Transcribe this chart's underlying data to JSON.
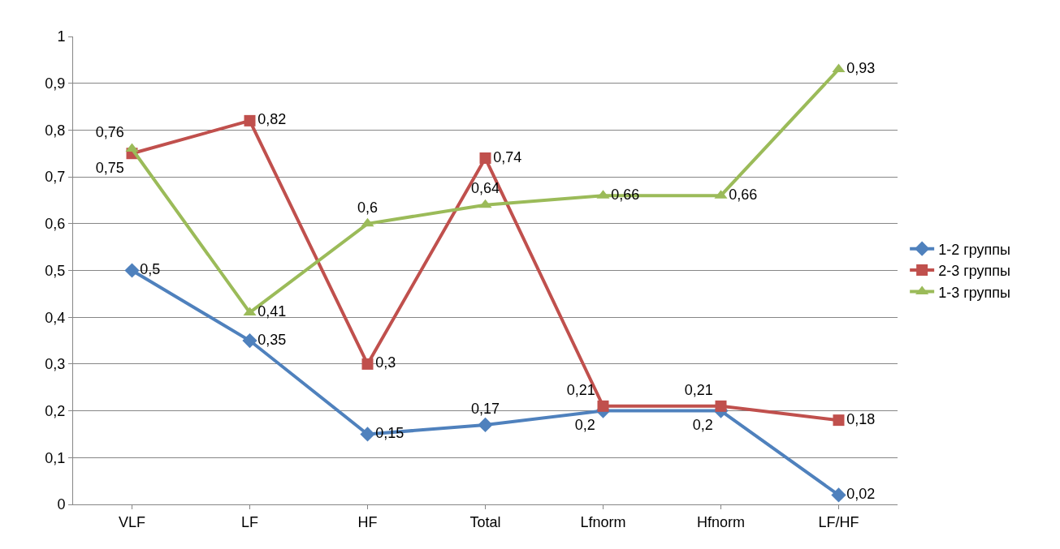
{
  "chart_data": {
    "type": "line",
    "categories": [
      "VLF",
      "LF",
      "HF",
      "Total",
      "Lfnorm",
      "Hfnorm",
      "LF/HF"
    ],
    "series": [
      {
        "name": "1-2 группы",
        "color": "#4f81bd",
        "marker": "diamond",
        "values": [
          0.5,
          0.35,
          0.15,
          0.17,
          0.2,
          0.2,
          0.02
        ],
        "value_labels": [
          "0,5",
          "0,35",
          "0,15",
          "0,17",
          "0,2",
          "0,2",
          "0,02"
        ]
      },
      {
        "name": "2-3 группы",
        "color": "#c0504d",
        "marker": "square",
        "values": [
          0.75,
          0.82,
          0.3,
          0.74,
          0.21,
          0.21,
          0.18
        ],
        "value_labels": [
          "0,75",
          "0,82",
          "0,3",
          "0,74",
          "0,21",
          "0,21",
          "0,18"
        ]
      },
      {
        "name": "1-3 группы",
        "color": "#9bbb59",
        "marker": "triangle",
        "values": [
          0.76,
          0.41,
          0.6,
          0.64,
          0.66,
          0.66,
          0.93
        ],
        "value_labels": [
          "0,76",
          "0,41",
          "0,6",
          "0,64",
          "0,66",
          "0,66",
          "0,93"
        ]
      }
    ],
    "ylim": [
      0,
      1
    ],
    "yticks": [
      {
        "value": 0,
        "label": "0"
      },
      {
        "value": 0.1,
        "label": "0,1"
      },
      {
        "value": 0.2,
        "label": "0,2"
      },
      {
        "value": 0.3,
        "label": "0,3"
      },
      {
        "value": 0.4,
        "label": "0,4"
      },
      {
        "value": 0.5,
        "label": "0,5"
      },
      {
        "value": 0.6,
        "label": "0,6"
      },
      {
        "value": 0.7,
        "label": "0,7"
      },
      {
        "value": 0.8,
        "label": "0,8"
      },
      {
        "value": 0.9,
        "label": "0,9"
      },
      {
        "value": 1,
        "label": "1"
      }
    ],
    "grid": "y",
    "legend": "right",
    "line_style": "solid"
  }
}
